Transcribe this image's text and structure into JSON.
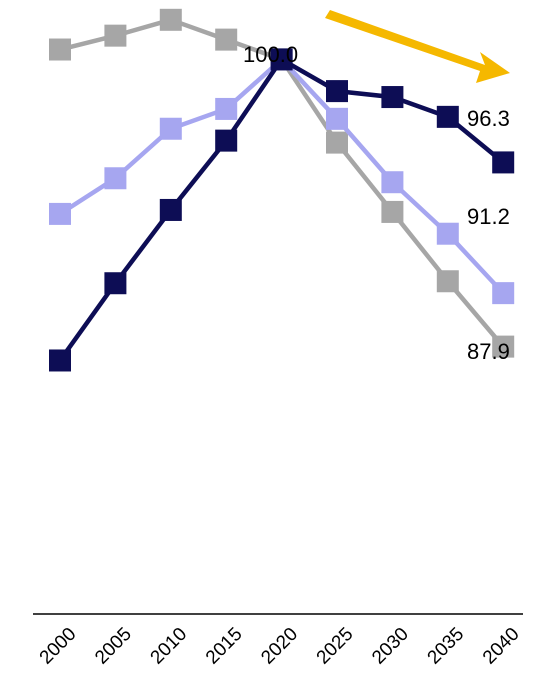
{
  "chart_data": {
    "type": "line",
    "categories": [
      "2000",
      "2005",
      "2010",
      "2015",
      "2020",
      "2025",
      "2030",
      "2035",
      "2040"
    ],
    "ylim": [
      72,
      103
    ],
    "grid": false,
    "legend": "none",
    "series": [
      {
        "color": "#a6a6a6",
        "values": [
          100.5,
          101.2,
          102.0,
          101.0,
          100.0,
          95.8,
          92.3,
          88.8,
          85.5
        ]
      },
      {
        "color": "#a6a6f0",
        "values": [
          92.2,
          94.0,
          96.5,
          97.5,
          100.0,
          97.0,
          93.8,
          91.2,
          88.2
        ]
      },
      {
        "color": "#0d0d55",
        "values": [
          84.8,
          88.7,
          92.4,
          95.9,
          100.0,
          98.4,
          98.1,
          97.1,
          94.8
        ]
      }
    ],
    "annotations": [
      "100.0",
      "96.3",
      "91.2",
      "87.9"
    ],
    "trend_arrow_color": "#f5b800"
  }
}
